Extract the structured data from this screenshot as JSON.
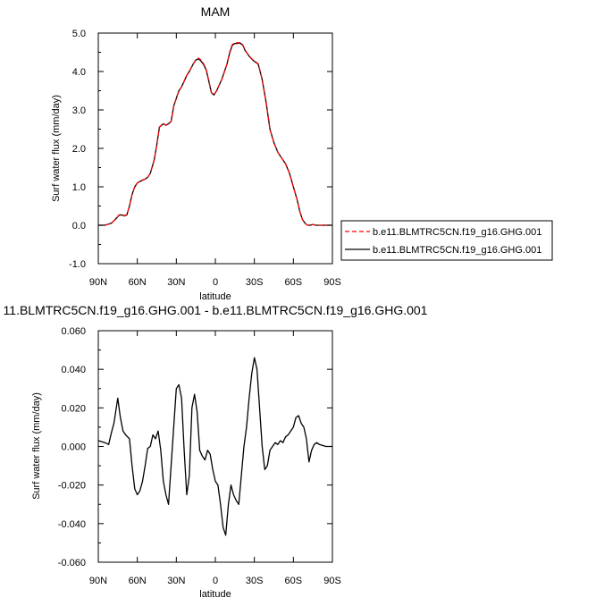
{
  "chart_data": [
    {
      "type": "line",
      "title": "MAM",
      "xlabel": "latitude",
      "ylabel": "Surf water flux (mm/day)",
      "xlim": [
        90,
        -90
      ],
      "ylim": [
        -1.0,
        5.0
      ],
      "xticks": [
        90,
        60,
        30,
        0,
        -30,
        -60,
        -90
      ],
      "xtick_labels": [
        "90N",
        "60N",
        "30N",
        "0",
        "30S",
        "60S",
        "90S"
      ],
      "yticks": [
        -1.0,
        0.0,
        1.0,
        2.0,
        3.0,
        4.0,
        5.0
      ],
      "ytick_labels": [
        "-1.0",
        "0.0",
        "1.0",
        "2.0",
        "3.0",
        "4.0",
        "5.0"
      ],
      "grid": false,
      "legend_position": "right",
      "colors": [
        "#ff0000",
        "#000000"
      ],
      "series": [
        {
          "name": "b.e11.BLMTRC5CN.f19_g16.GHG.001",
          "style": "dashed",
          "x": [
            90,
            85,
            80,
            77,
            74,
            72,
            70,
            68,
            66,
            64,
            62,
            60,
            58,
            56,
            54,
            52,
            50,
            47,
            45,
            43,
            40,
            38,
            36,
            34,
            32,
            30,
            28,
            26,
            24,
            22,
            20,
            17,
            15,
            13,
            11,
            9,
            7,
            5,
            3,
            1,
            -1,
            -3,
            -5,
            -7,
            -9,
            -11,
            -13,
            -15,
            -17,
            -19,
            -21,
            -23,
            -26,
            -29,
            -31,
            -33,
            -36,
            -39,
            -42,
            -45,
            -48,
            -51,
            -54,
            -57,
            -60,
            -63,
            -65,
            -67,
            -69,
            -71,
            -73,
            -75,
            -77,
            -80,
            -83,
            -86,
            -90
          ],
          "y": [
            0.0,
            0.0,
            0.05,
            0.15,
            0.27,
            0.28,
            0.25,
            0.28,
            0.5,
            0.8,
            1.0,
            1.1,
            1.15,
            1.18,
            1.2,
            1.25,
            1.35,
            1.7,
            2.1,
            2.55,
            2.65,
            2.6,
            2.65,
            2.7,
            3.1,
            3.3,
            3.5,
            3.6,
            3.75,
            3.9,
            4.0,
            4.2,
            4.3,
            4.35,
            4.3,
            4.2,
            4.05,
            3.75,
            3.45,
            3.4,
            3.5,
            3.65,
            3.8,
            4.0,
            4.2,
            4.5,
            4.7,
            4.75,
            4.75,
            4.75,
            4.7,
            4.55,
            4.4,
            4.3,
            4.25,
            4.2,
            3.8,
            3.2,
            2.5,
            2.15,
            1.9,
            1.75,
            1.6,
            1.35,
            1.0,
            0.65,
            0.35,
            0.15,
            0.05,
            0.0,
            0.0,
            0.02,
            0.0,
            0.0,
            0.0,
            0.0,
            0.0
          ]
        },
        {
          "name": "b.e11.BLMTRC5CN.f19_g16.GHG.001",
          "style": "solid",
          "x": [
            90,
            85,
            80,
            77,
            74,
            72,
            70,
            68,
            66,
            64,
            62,
            60,
            58,
            56,
            54,
            52,
            50,
            47,
            45,
            43,
            40,
            38,
            36,
            34,
            32,
            30,
            28,
            26,
            24,
            22,
            20,
            17,
            15,
            13,
            11,
            9,
            7,
            5,
            3,
            1,
            -1,
            -3,
            -5,
            -7,
            -9,
            -11,
            -13,
            -15,
            -17,
            -19,
            -21,
            -23,
            -26,
            -29,
            -31,
            -33,
            -36,
            -39,
            -42,
            -45,
            -48,
            -51,
            -54,
            -57,
            -60,
            -63,
            -65,
            -67,
            -69,
            -71,
            -73,
            -75,
            -77,
            -80,
            -83,
            -86,
            -90
          ],
          "y": [
            0.0,
            0.0,
            0.05,
            0.15,
            0.26,
            0.27,
            0.24,
            0.27,
            0.5,
            0.8,
            1.0,
            1.1,
            1.14,
            1.17,
            1.2,
            1.25,
            1.35,
            1.7,
            2.1,
            2.55,
            2.64,
            2.6,
            2.64,
            2.7,
            3.1,
            3.3,
            3.5,
            3.6,
            3.75,
            3.9,
            4.0,
            4.2,
            4.3,
            4.33,
            4.27,
            4.18,
            4.04,
            3.75,
            3.45,
            3.39,
            3.5,
            3.65,
            3.8,
            4.0,
            4.2,
            4.48,
            4.68,
            4.73,
            4.73,
            4.74,
            4.69,
            4.54,
            4.4,
            4.29,
            4.24,
            4.19,
            3.79,
            3.2,
            2.5,
            2.15,
            1.9,
            1.75,
            1.6,
            1.35,
            1.0,
            0.65,
            0.35,
            0.15,
            0.05,
            0.0,
            0.0,
            0.02,
            0.0,
            0.0,
            0.0,
            0.0,
            0.0
          ]
        }
      ]
    },
    {
      "type": "line",
      "title": "11.BLMTRC5CN.f19_g16.GHG.001 - b.e11.BLMTRC5CN.f19_g16.GHG.001",
      "xlabel": "latitude",
      "ylabel": "Surf water flux (mm/day)",
      "xlim": [
        90,
        -90
      ],
      "ylim": [
        -0.06,
        0.06
      ],
      "xticks": [
        90,
        60,
        30,
        0,
        -30,
        -60,
        -90
      ],
      "xtick_labels": [
        "90N",
        "60N",
        "30N",
        "0",
        "30S",
        "60S",
        "90S"
      ],
      "yticks": [
        -0.06,
        -0.04,
        -0.02,
        0.0,
        0.02,
        0.04,
        0.06
      ],
      "ytick_labels": [
        "-0.060",
        "-0.040",
        "-0.020",
        "0.000",
        "0.020",
        "0.040",
        "0.060"
      ],
      "grid": false,
      "colors": [
        "#000000"
      ],
      "series": [
        {
          "style": "solid",
          "x": [
            90,
            85,
            82,
            80,
            78,
            75,
            73,
            71,
            69,
            66,
            64,
            62,
            60,
            58,
            56,
            54,
            52,
            50,
            48,
            46,
            44,
            42,
            40,
            38,
            36,
            34,
            32,
            30,
            28,
            26,
            24,
            22,
            20,
            18,
            16,
            14,
            12,
            10,
            8,
            6,
            4,
            2,
            0,
            -2,
            -4,
            -6,
            -8,
            -10,
            -12,
            -14,
            -16,
            -18,
            -20,
            -22,
            -24,
            -26,
            -28,
            -30,
            -32,
            -34,
            -36,
            -38,
            -40,
            -42,
            -44,
            -46,
            -48,
            -50,
            -52,
            -54,
            -56,
            -58,
            -60,
            -62,
            -64,
            -66,
            -68,
            -70,
            -72,
            -74,
            -76,
            -78,
            -80,
            -85,
            -90
          ],
          "y": [
            0.003,
            0.002,
            0.001,
            0.007,
            0.012,
            0.025,
            0.015,
            0.008,
            0.006,
            0.004,
            -0.01,
            -0.022,
            -0.025,
            -0.023,
            -0.018,
            -0.01,
            -0.001,
            0.0,
            0.006,
            0.004,
            0.008,
            -0.002,
            -0.018,
            -0.025,
            -0.03,
            -0.01,
            0.01,
            0.03,
            0.032,
            0.025,
            -0.002,
            -0.025,
            -0.015,
            0.02,
            0.027,
            0.018,
            -0.002,
            -0.005,
            -0.007,
            -0.002,
            -0.004,
            -0.012,
            -0.018,
            -0.02,
            -0.03,
            -0.042,
            -0.046,
            -0.03,
            -0.02,
            -0.025,
            -0.028,
            -0.03,
            -0.015,
            0.0,
            0.01,
            0.025,
            0.038,
            0.046,
            0.04,
            0.02,
            0.0,
            -0.012,
            -0.01,
            -0.002,
            0.0,
            0.002,
            0.001,
            0.003,
            0.002,
            0.005,
            0.006,
            0.008,
            0.01,
            0.015,
            0.016,
            0.012,
            0.01,
            0.004,
            -0.008,
            -0.002,
            0.001,
            0.002,
            0.001,
            0.0,
            0.0
          ]
        }
      ]
    }
  ]
}
